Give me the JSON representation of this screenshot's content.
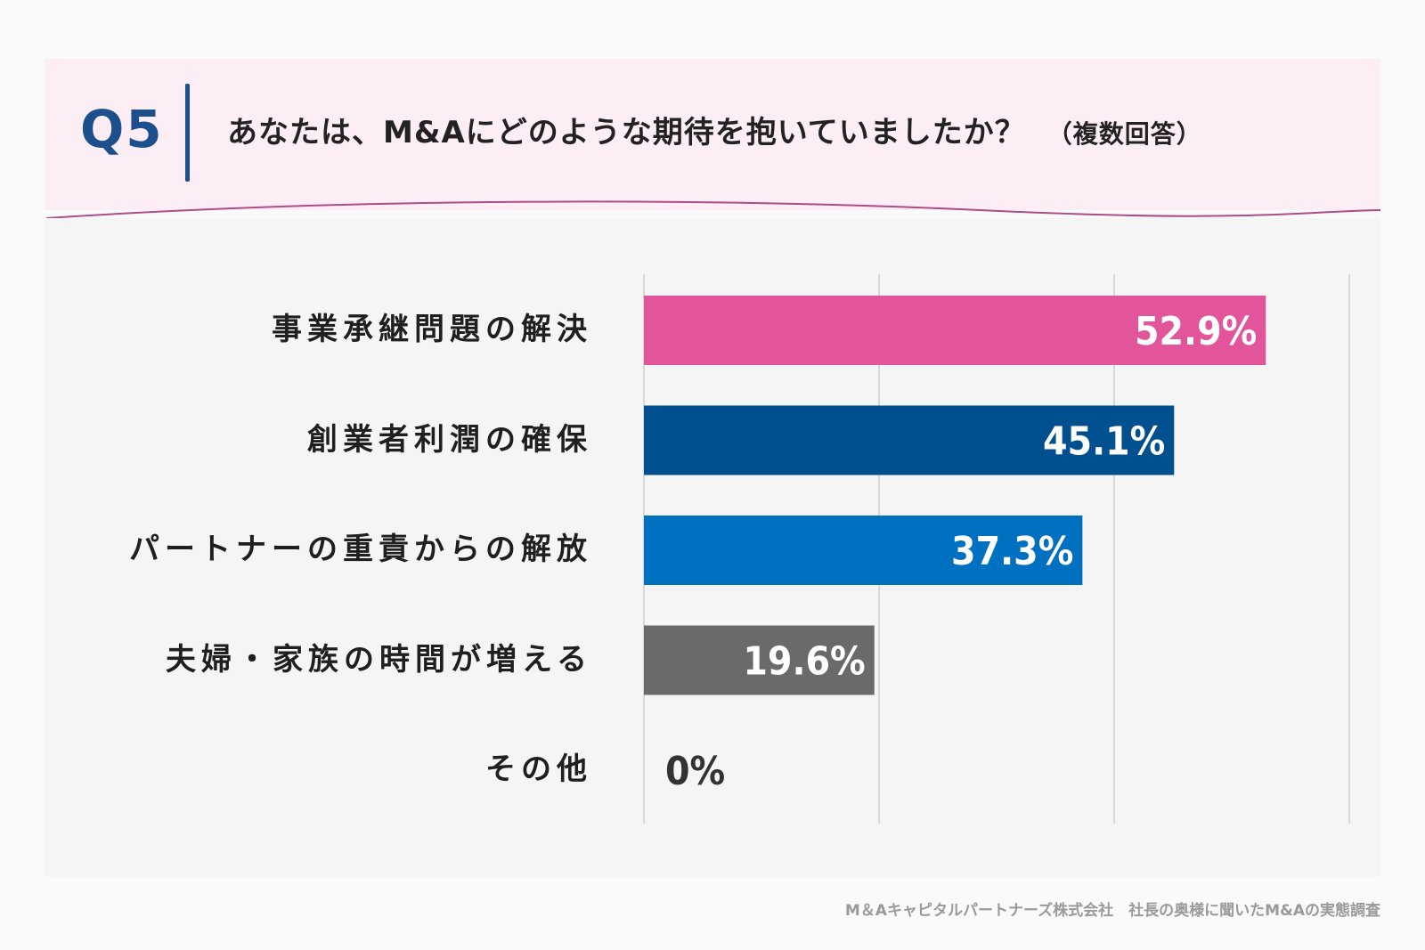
{
  "header": {
    "question_number": "Q5",
    "question_text": "あなたは、M&Aにどのような期待を抱いていましたか？",
    "question_note": "（複数回答）"
  },
  "chart_data": {
    "type": "bar",
    "orientation": "horizontal",
    "title": "あなたは、M&Aにどのような期待を抱いていましたか？（複数回答）",
    "categories": [
      "事業承継問題の解決",
      "創業者利潤の確保",
      "パートナーの重責からの解放",
      "夫婦・家族の時間が増える",
      "その他"
    ],
    "values": [
      52.9,
      45.1,
      37.3,
      19.6,
      0
    ],
    "value_labels": [
      "52.9%",
      "45.1%",
      "37.3%",
      "19.6%",
      "0%"
    ],
    "colors": [
      "#e2559a",
      "#00508f",
      "#0071c1",
      "#6a6a6a",
      "#6a6a6a"
    ],
    "xlim": [
      0,
      60
    ],
    "gridlines": [
      0,
      20,
      40,
      60
    ],
    "xlabel": "",
    "ylabel": "",
    "legend": "none"
  },
  "footer": {
    "credit": "M＆Aキャピタルパートナーズ株式会社　社長の奥様に聞いたM&Aの実態調査"
  }
}
